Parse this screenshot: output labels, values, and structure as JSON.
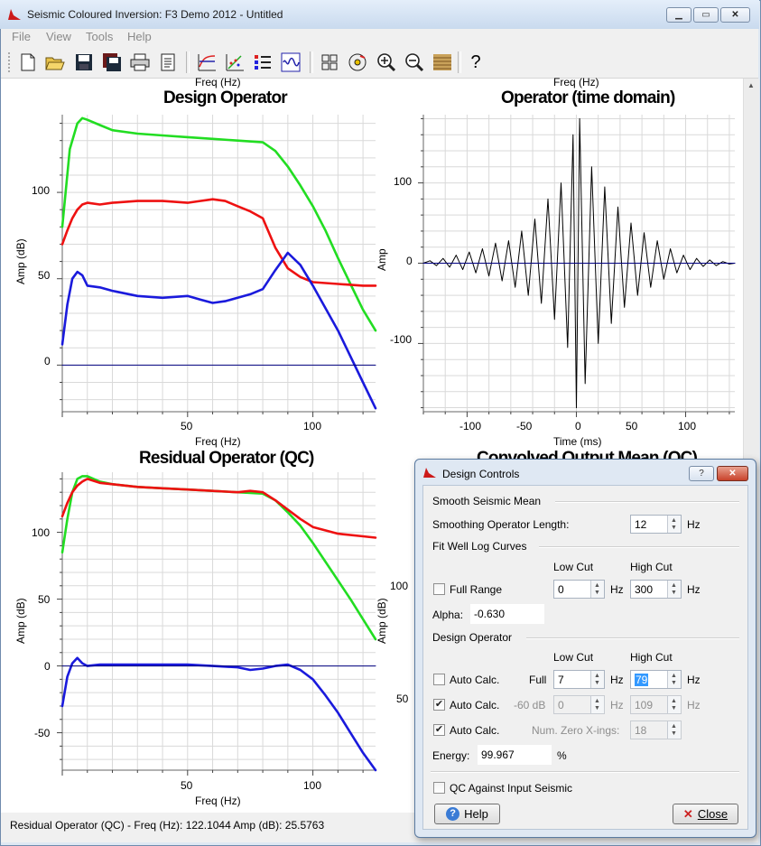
{
  "window": {
    "title": "Seismic Coloured Inversion: F3 Demo 2012 - Untitled",
    "minimize_icon": "minimize-icon",
    "maximize_icon": "maximize-icon",
    "close_icon": "close-icon"
  },
  "menu": [
    "File",
    "View",
    "Tools",
    "Help"
  ],
  "toolbar": {
    "icons": [
      "new-file-icon",
      "open-folder-icon",
      "save-icon",
      "save-all-icon",
      "print-icon",
      "report-icon",
      "spectrum-icon",
      "crossplot-icon",
      "list-icon",
      "wavelet-icon",
      "grid-icon",
      "cd-icon",
      "zoom-in-icon",
      "zoom-out-icon",
      "seismic-icon",
      "help-icon"
    ],
    "help_label": "?"
  },
  "plots": {
    "design": {
      "title": "Design Operator",
      "cut_label": "Freq (Hz)",
      "xlabel": "Freq (Hz)",
      "ylabel": "Amp (dB)",
      "xticks": [
        "50",
        "100"
      ],
      "yticks": [
        "100",
        "50",
        "0"
      ]
    },
    "operator": {
      "title": "Operator (time domain)",
      "cut_label": "Freq (Hz)",
      "xlabel": "Time (ms)",
      "ylabel": "Amp",
      "xticks": [
        "-100",
        "-50",
        "0",
        "50",
        "100"
      ],
      "yticks": [
        "100",
        "0",
        "-100"
      ]
    },
    "residual": {
      "title": "Residual Operator (QC)",
      "xlabel": "Freq (Hz)",
      "ylabel": "Amp (dB)",
      "xticks": [
        "50",
        "100"
      ],
      "yticks": [
        "100",
        "50",
        "0",
        "-50"
      ]
    },
    "convolved": {
      "title": "Convolved Output Mean (QC)",
      "ylabel": "Amp (dB)",
      "yticks": [
        "100",
        "50"
      ]
    }
  },
  "chart_data": [
    {
      "type": "line",
      "title": "Design Operator",
      "xlabel": "Freq (Hz)",
      "ylabel": "Amp (dB)",
      "xlim": [
        0,
        125
      ],
      "ylim": [
        -27,
        145
      ],
      "series": [
        {
          "color": "#22dd22",
          "x": [
            0,
            3,
            6,
            8,
            10,
            15,
            20,
            30,
            40,
            50,
            60,
            70,
            80,
            85,
            90,
            95,
            100,
            105,
            110,
            115,
            120,
            125
          ],
          "y": [
            80,
            125,
            140,
            143,
            142,
            139,
            136,
            134,
            133,
            132,
            131,
            130,
            129,
            124,
            115,
            104,
            92,
            78,
            62,
            47,
            32,
            20
          ]
        },
        {
          "color": "#ee1111",
          "x": [
            0,
            2,
            4,
            6,
            8,
            10,
            15,
            20,
            30,
            40,
            50,
            55,
            60,
            65,
            70,
            75,
            80,
            85,
            90,
            95,
            100,
            110,
            120,
            125
          ],
          "y": [
            70,
            78,
            85,
            90,
            93,
            94,
            93,
            94,
            95,
            95,
            94,
            95,
            96,
            95,
            92,
            89,
            85,
            68,
            56,
            51,
            48,
            47,
            46,
            46
          ]
        },
        {
          "color": "#1a1adc",
          "x": [
            0,
            2,
            4,
            6,
            8,
            10,
            15,
            20,
            30,
            40,
            50,
            55,
            60,
            65,
            70,
            75,
            80,
            85,
            90,
            95,
            100,
            110,
            120,
            125
          ],
          "y": [
            12,
            35,
            50,
            54,
            52,
            46,
            45,
            43,
            40,
            39,
            40,
            38,
            36,
            37,
            39,
            41,
            44,
            55,
            65,
            58,
            46,
            20,
            -10,
            -25
          ]
        },
        {
          "color": "#000080",
          "x": [
            0,
            125
          ],
          "y": [
            0,
            0
          ]
        }
      ]
    },
    {
      "type": "line",
      "title": "Operator (time domain)",
      "xlabel": "Time (ms)",
      "ylabel": "Amp",
      "xlim": [
        -140,
        145
      ],
      "ylim": [
        -185,
        185
      ],
      "series": [
        {
          "color": "#000000",
          "x": [
            -140,
            -134,
            -128,
            -122,
            -116,
            -110,
            -104,
            -98,
            -92,
            -86,
            -80,
            -74,
            -68,
            -62,
            -56,
            -50,
            -44,
            -38,
            -32,
            -26,
            -20,
            -14,
            -8,
            -3,
            0,
            3,
            8,
            14,
            20,
            26,
            32,
            38,
            44,
            50,
            56,
            62,
            68,
            74,
            80,
            86,
            92,
            98,
            104,
            110,
            116,
            122,
            128,
            134,
            140,
            145
          ],
          "y": [
            0,
            3,
            -3,
            6,
            -5,
            10,
            -8,
            14,
            -12,
            18,
            -16,
            25,
            -22,
            28,
            -30,
            40,
            -40,
            55,
            -50,
            80,
            -70,
            100,
            -105,
            160,
            -180,
            180,
            -150,
            120,
            -100,
            95,
            -75,
            70,
            -55,
            50,
            -40,
            38,
            -30,
            28,
            -20,
            18,
            -12,
            10,
            -8,
            6,
            -4,
            4,
            -3,
            2,
            -1,
            0
          ]
        },
        {
          "color": "#000080",
          "x": [
            -140,
            145
          ],
          "y": [
            0,
            0
          ]
        }
      ]
    },
    {
      "type": "line",
      "title": "Residual Operator (QC)",
      "xlabel": "Freq (Hz)",
      "ylabel": "Amp (dB)",
      "xlim": [
        0,
        125
      ],
      "ylim": [
        -78,
        145
      ],
      "series": [
        {
          "color": "#22dd22",
          "x": [
            0,
            2,
            4,
            6,
            8,
            10,
            15,
            20,
            30,
            40,
            50,
            60,
            70,
            80,
            85,
            90,
            95,
            100,
            105,
            110,
            115,
            120,
            125
          ],
          "y": [
            85,
            110,
            130,
            140,
            142,
            142,
            138,
            136,
            134,
            133,
            132,
            131,
            130,
            129,
            124,
            115,
            105,
            92,
            78,
            64,
            50,
            35,
            20
          ]
        },
        {
          "color": "#ee1111",
          "x": [
            0,
            2,
            4,
            6,
            8,
            10,
            15,
            20,
            30,
            40,
            50,
            60,
            70,
            75,
            80,
            85,
            90,
            95,
            100,
            110,
            120,
            125
          ],
          "y": [
            112,
            122,
            130,
            135,
            138,
            140,
            137,
            136,
            134,
            133,
            132,
            131,
            130,
            131,
            130,
            124,
            117,
            110,
            104,
            99,
            97,
            96
          ]
        },
        {
          "color": "#1a1adc",
          "x": [
            0,
            2,
            4,
            6,
            8,
            10,
            15,
            20,
            30,
            40,
            50,
            60,
            70,
            75,
            80,
            85,
            90,
            95,
            100,
            105,
            110,
            115,
            120,
            125
          ],
          "y": [
            -30,
            -8,
            2,
            6,
            2,
            0,
            1,
            1,
            1,
            1,
            1,
            0,
            -1,
            -3,
            -2,
            0,
            1,
            -3,
            -10,
            -22,
            -35,
            -50,
            -65,
            -78
          ]
        },
        {
          "color": "#000080",
          "x": [
            0,
            125
          ],
          "y": [
            0,
            0
          ]
        }
      ]
    }
  ],
  "status": {
    "text": "Residual Operator (QC)  -  Freq (Hz): 122.1044  Amp (dB): 25.5763"
  },
  "dialog": {
    "title": "Design Controls",
    "help_title_btn": "?",
    "close_title_btn": "close-icon",
    "smooth_header": "Smooth Seismic Mean",
    "smoothing_label": "Smoothing Operator Length:",
    "smoothing_value": "12",
    "hz": "Hz",
    "fit_header": "Fit Well Log Curves",
    "low_cut": "Low Cut",
    "high_cut": "High Cut",
    "full_range_label": "Full Range",
    "full_range_checked": false,
    "fit_low_value": "0",
    "fit_high_value": "300",
    "alpha_label": "Alpha:",
    "alpha_value": "-0.630",
    "design_header": "Design Operator",
    "auto1_label": "Auto Calc.",
    "auto1_checked": false,
    "full_label": "Full",
    "full_low": "7",
    "full_high": "79",
    "auto2_label": "Auto Calc.",
    "auto2_checked": true,
    "db_label": "-60 dB",
    "db_low": "0",
    "db_high": "109",
    "auto3_label": "Auto Calc.",
    "auto3_checked": true,
    "zero_label": "Num. Zero X-ings:",
    "zero_value": "18",
    "energy_label": "Energy:",
    "energy_value": "99.967",
    "percent": "%",
    "qc_label": "QC Against Input Seismic",
    "qc_checked": false,
    "help_button": "Help",
    "close_button": "Close"
  },
  "colors": {
    "green": "#22dd22",
    "red": "#ee1111",
    "blue": "#1a1adc",
    "zero_line": "#000080",
    "grid": "#d9d9d9"
  }
}
